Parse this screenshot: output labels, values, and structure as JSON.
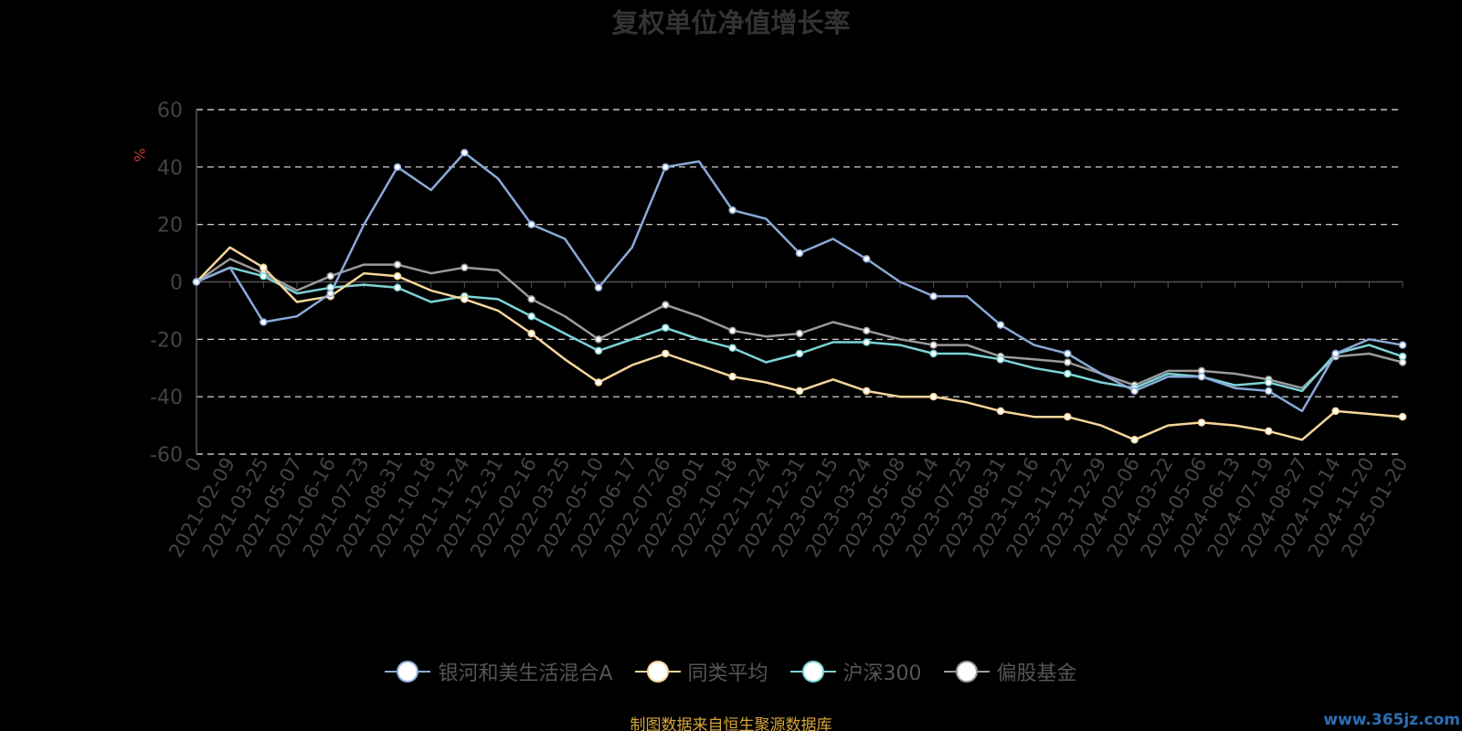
{
  "header": {
    "title": "复权单位净值增长率"
  },
  "footer": {
    "source": "制图数据来自恒生聚源数据库",
    "watermark": "www.365jz.com"
  },
  "legend": [
    {
      "label": "银河和美生活混合A",
      "color": "#8aa9d8"
    },
    {
      "label": "同类平均",
      "color": "#f5d59a"
    },
    {
      "label": "沪深300",
      "color": "#7cd3d5"
    },
    {
      "label": "偏股基金",
      "color": "#9a9a9a"
    }
  ],
  "chart_data": {
    "type": "line",
    "ylabel": "%",
    "ylim": [
      -60,
      60
    ],
    "yticks": [
      60,
      40,
      20,
      0,
      -20,
      -40,
      -60
    ],
    "grid": true,
    "legend_position": "bottom",
    "categories": [
      "0",
      "2021-02-09",
      "2021-03-25",
      "2021-05-07",
      "2021-06-16",
      "2021-07-23",
      "2021-08-31",
      "2021-10-18",
      "2021-11-24",
      "2021-12-31",
      "2022-02-16",
      "2022-03-25",
      "2022-05-10",
      "2022-06-17",
      "2022-07-26",
      "2022-09-01",
      "2022-10-18",
      "2022-11-24",
      "2022-12-31",
      "2023-02-15",
      "2023-03-24",
      "2023-05-08",
      "2023-06-14",
      "2023-07-25",
      "2023-08-31",
      "2023-10-16",
      "2023-11-22",
      "2023-12-29",
      "2024-02-06",
      "2024-03-22",
      "2024-05-06",
      "2024-06-13",
      "2024-07-19",
      "2024-08-27",
      "2024-10-14",
      "2024-11-20",
      "2025-01-20"
    ],
    "series": [
      {
        "name": "银河和美生活混合A",
        "color": "#8aa9d8",
        "values": [
          0,
          5,
          -14,
          -12,
          -4,
          20,
          40,
          32,
          45,
          36,
          20,
          15,
          -2,
          12,
          40,
          42,
          25,
          22,
          10,
          15,
          8,
          0,
          -5,
          -5,
          -15,
          -22,
          -25,
          -32,
          -38,
          -33,
          -33,
          -37,
          -38,
          -45,
          -25,
          -20,
          -22
        ]
      },
      {
        "name": "同类平均",
        "color": "#f5d59a",
        "values": [
          0,
          12,
          5,
          -7,
          -5,
          3,
          2,
          -3,
          -6,
          -10,
          -18,
          -27,
          -35,
          -29,
          -25,
          -29,
          -33,
          -35,
          -38,
          -34,
          -38,
          -40,
          -40,
          -42,
          -45,
          -47,
          -47,
          -50,
          -55,
          -50,
          -49,
          -50,
          -52,
          -55,
          -45,
          -46,
          -47
        ]
      },
      {
        "name": "沪深300",
        "color": "#7cd3d5",
        "values": [
          0,
          5,
          2,
          -4,
          -2,
          -1,
          -2,
          -7,
          -5,
          -6,
          -12,
          -18,
          -24,
          -20,
          -16,
          -20,
          -23,
          -28,
          -25,
          -21,
          -21,
          -22,
          -25,
          -25,
          -27,
          -30,
          -32,
          -35,
          -37,
          -32,
          -33,
          -36,
          -35,
          -38,
          -25,
          -22,
          -26
        ]
      },
      {
        "name": "偏股基金",
        "color": "#9a9a9a",
        "values": [
          0,
          8,
          3,
          -3,
          2,
          6,
          6,
          3,
          5,
          4,
          -6,
          -12,
          -20,
          -14,
          -8,
          -12,
          -17,
          -19,
          -18,
          -14,
          -17,
          -20,
          -22,
          -22,
          -26,
          -27,
          -28,
          -32,
          -36,
          -31,
          -31,
          -32,
          -34,
          -37,
          -26,
          -25,
          -28
        ]
      }
    ]
  }
}
